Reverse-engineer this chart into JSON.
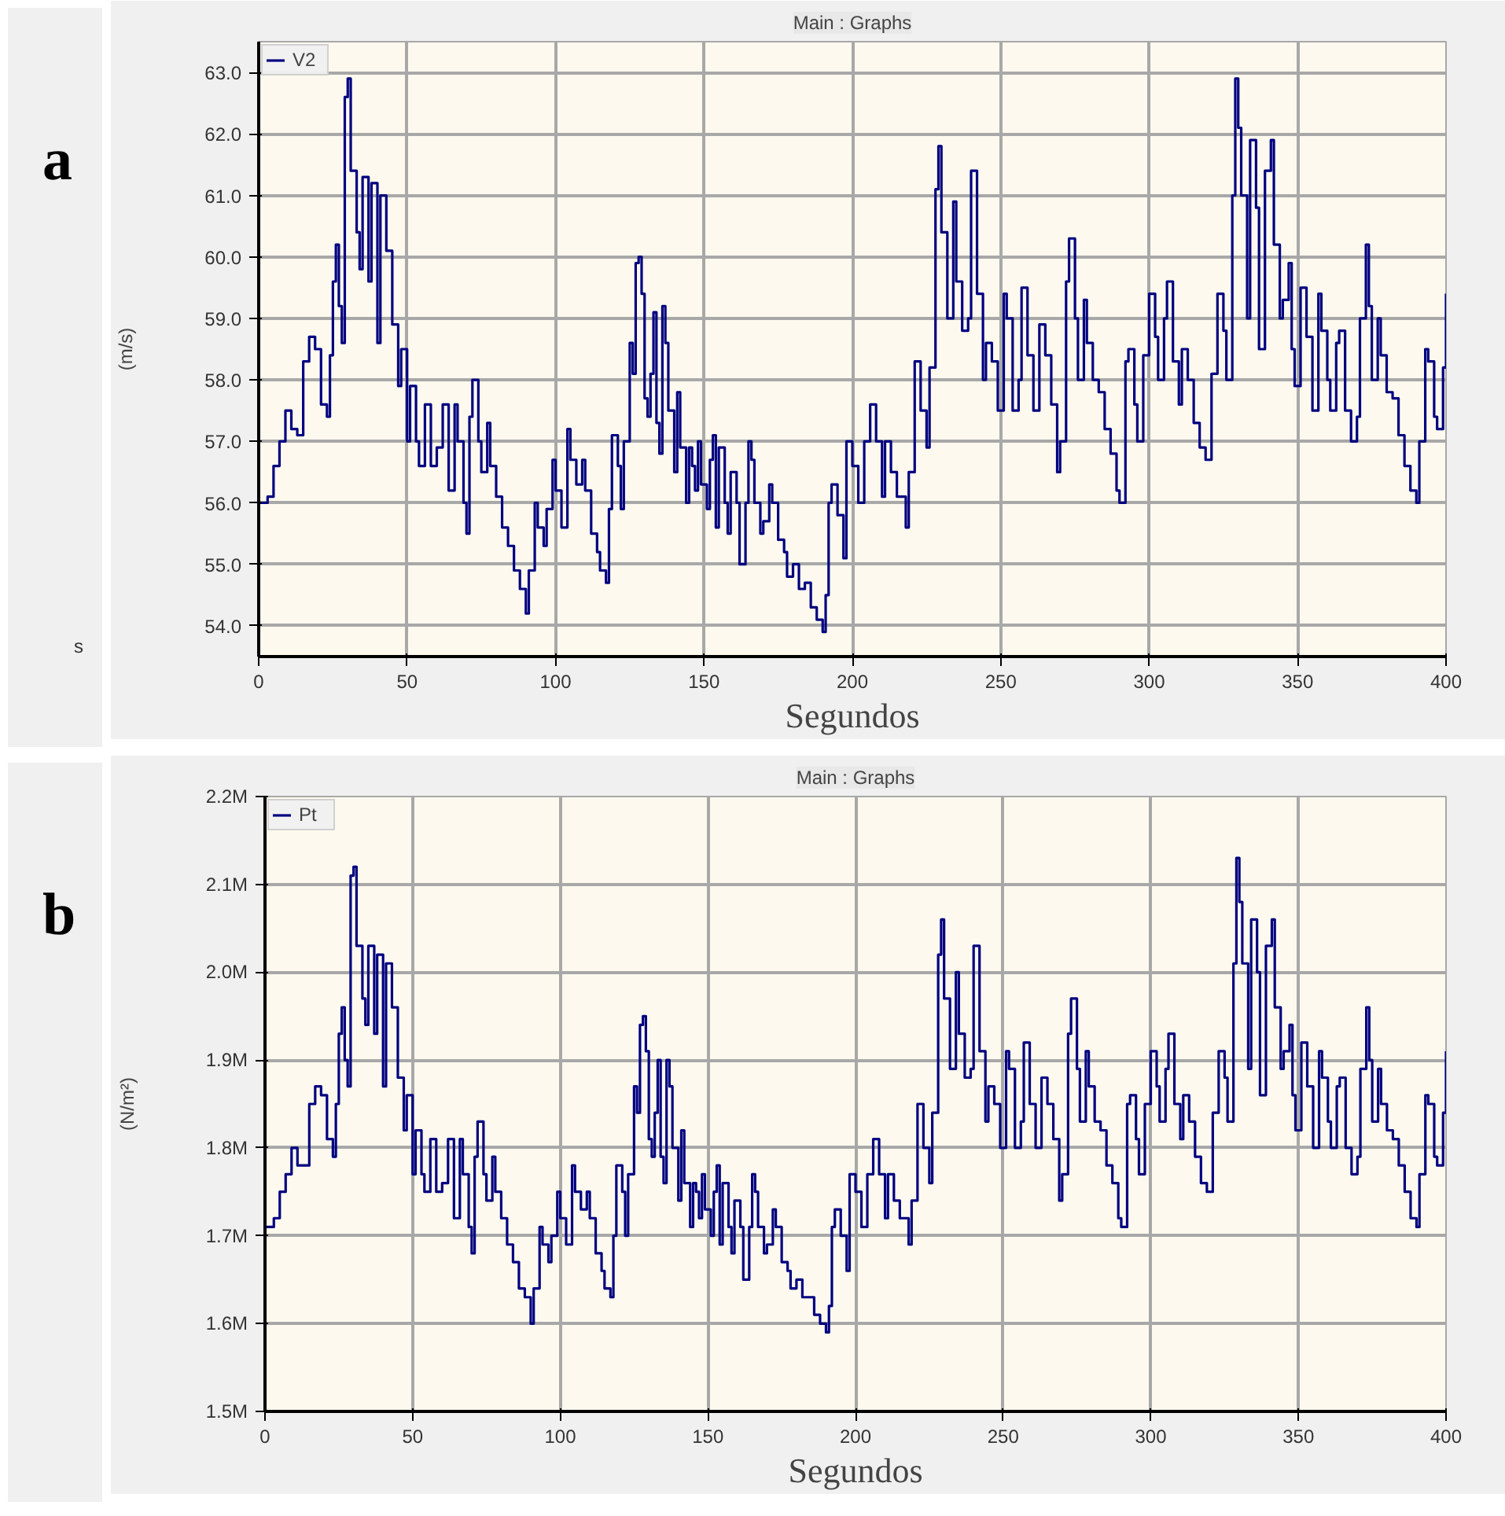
{
  "chart_data": [
    {
      "type": "step",
      "title": "Main : Graphs",
      "xlabel": "Segundos",
      "ylabel": "(m/s)",
      "annotations": [
        "a",
        "s"
      ],
      "grid": true,
      "legend": "top left",
      "xlim": [
        0,
        400
      ],
      "xticks": [
        0,
        50,
        100,
        150,
        200,
        250,
        300,
        350,
        400
      ],
      "ylim": [
        53.5,
        63.5
      ],
      "yticks": [
        {
          "value": 54,
          "label": "54.0"
        },
        {
          "value": 55,
          "label": "55.0"
        },
        {
          "value": 56,
          "label": "56.0"
        },
        {
          "value": 57,
          "label": "57.0"
        },
        {
          "value": 58,
          "label": "58.0"
        },
        {
          "value": 59,
          "label": "59.0"
        },
        {
          "value": 60,
          "label": "60.0"
        },
        {
          "value": 61,
          "label": "61.0"
        },
        {
          "value": 62,
          "label": "62.0"
        },
        {
          "value": 63,
          "label": "63.0"
        }
      ],
      "x": [
        0,
        3,
        5,
        7,
        9,
        11,
        13,
        15,
        17,
        19,
        21,
        23,
        24,
        25,
        26,
        27,
        28,
        29,
        30,
        31,
        33,
        34,
        35,
        37,
        38,
        40,
        41,
        43,
        45,
        47,
        48,
        50,
        51,
        53,
        54,
        56,
        58,
        60,
        62,
        64,
        66,
        67,
        69,
        70,
        71,
        72,
        74,
        75,
        77,
        78,
        80,
        82,
        84,
        86,
        88,
        90,
        91,
        93,
        94,
        96,
        97,
        99,
        100,
        102,
        104,
        105,
        107,
        109,
        110,
        112,
        114,
        115,
        117,
        118,
        119,
        121,
        122,
        123,
        125,
        126,
        127,
        128,
        129,
        130,
        131,
        132,
        133,
        134,
        135,
        136,
        137,
        138,
        140,
        141,
        142,
        144,
        145,
        146,
        147,
        148,
        149,
        151,
        152,
        153,
        154,
        155,
        157,
        158,
        159,
        161,
        162,
        164,
        165,
        166,
        167,
        169,
        170,
        172,
        173,
        175,
        177,
        178,
        180,
        182,
        184,
        186,
        188,
        190,
        191,
        192,
        193,
        195,
        197,
        198,
        200,
        202,
        204,
        206,
        208,
        210,
        211,
        213,
        215,
        218,
        219,
        221,
        223,
        225,
        226,
        228,
        229,
        230,
        232,
        234,
        235,
        237,
        239,
        240,
        242,
        244,
        245,
        247,
        249,
        251,
        252,
        254,
        256,
        257,
        259,
        261,
        263,
        265,
        267,
        269,
        270,
        272,
        273,
        275,
        276,
        278,
        279,
        281,
        283,
        285,
        287,
        289,
        290,
        292,
        293,
        295,
        296,
        298,
        300,
        302,
        303,
        305,
        306,
        308,
        310,
        311,
        313,
        315,
        317,
        319,
        321,
        323,
        325,
        326,
        328,
        329,
        330,
        331,
        333,
        334,
        336,
        337,
        339,
        341,
        342,
        344,
        345,
        347,
        348,
        349,
        351,
        353,
        355,
        357,
        358,
        360,
        361,
        363,
        364,
        366,
        368,
        370,
        371,
        373,
        374,
        375,
        377,
        378,
        380,
        382,
        384,
        386,
        388,
        390,
        391,
        393,
        394,
        396,
        397,
        399,
        400
      ],
      "series": [
        {
          "name": "V2",
          "color": "#000080",
          "values": [
            56.0,
            56.1,
            56.6,
            57.0,
            57.5,
            57.2,
            57.1,
            58.3,
            58.7,
            58.5,
            57.6,
            57.4,
            58.4,
            59.6,
            60.2,
            59.2,
            58.6,
            62.6,
            62.9,
            61.4,
            60.4,
            59.8,
            61.3,
            59.6,
            61.2,
            58.6,
            61.0,
            60.1,
            58.9,
            57.9,
            58.5,
            57.0,
            57.9,
            57.0,
            56.6,
            57.6,
            56.6,
            56.9,
            57.6,
            56.2,
            57.6,
            57.0,
            56.0,
            55.5,
            57.4,
            58.0,
            57.0,
            56.5,
            57.3,
            56.6,
            56.1,
            55.6,
            55.3,
            54.9,
            54.6,
            54.2,
            54.9,
            56.0,
            55.6,
            55.3,
            55.9,
            56.7,
            56.2,
            55.6,
            57.2,
            56.7,
            56.3,
            56.7,
            56.2,
            55.5,
            55.2,
            54.9,
            54.7,
            55.9,
            57.1,
            56.6,
            55.9,
            57.0,
            58.6,
            58.1,
            59.9,
            60.0,
            59.4,
            57.7,
            57.4,
            58.1,
            59.1,
            57.3,
            56.8,
            59.2,
            58.6,
            57.5,
            56.5,
            57.8,
            56.9,
            56.0,
            56.9,
            56.6,
            56.2,
            57.0,
            56.3,
            55.9,
            56.7,
            57.1,
            55.6,
            56.9,
            56.0,
            55.5,
            56.5,
            56.0,
            55.0,
            56.0,
            57.0,
            56.7,
            56.0,
            55.5,
            55.7,
            56.3,
            56.0,
            55.4,
            55.2,
            54.8,
            55.0,
            54.6,
            54.7,
            54.3,
            54.1,
            53.9,
            54.5,
            56.0,
            56.3,
            55.8,
            55.1,
            57.0,
            56.6,
            56.0,
            57.0,
            57.6,
            57.0,
            56.1,
            57.0,
            56.5,
            56.1,
            55.6,
            56.5,
            58.3,
            57.5,
            56.9,
            58.2,
            61.1,
            61.8,
            60.4,
            59.0,
            60.9,
            59.6,
            58.8,
            59.0,
            61.4,
            59.4,
            58.0,
            58.6,
            58.3,
            57.5,
            59.4,
            59.0,
            57.5,
            58.0,
            59.5,
            58.4,
            57.5,
            58.9,
            58.4,
            57.6,
            56.5,
            57.0,
            59.6,
            60.3,
            59.0,
            58.0,
            59.3,
            58.6,
            58.0,
            57.8,
            57.2,
            56.8,
            56.2,
            56.0,
            58.3,
            58.5,
            57.6,
            57.0,
            58.4,
            59.4,
            58.7,
            58.0,
            59.0,
            59.6,
            58.3,
            57.6,
            58.5,
            58.0,
            57.3,
            56.9,
            56.7,
            58.1,
            59.4,
            58.8,
            58.0,
            61.0,
            62.9,
            62.1,
            61.0,
            59.0,
            61.9,
            60.8,
            58.5,
            61.4,
            61.9,
            60.2,
            59.0,
            59.3,
            59.9,
            58.5,
            57.9,
            59.5,
            58.7,
            57.5,
            59.4,
            58.8,
            58.0,
            57.5,
            58.6,
            58.8,
            57.5,
            57.0,
            57.4,
            59.0,
            60.2,
            59.2,
            58.0,
            59.0,
            58.4,
            57.8,
            57.7,
            57.1,
            56.6,
            56.2,
            56.0,
            57.0,
            58.5,
            58.3,
            57.4,
            57.2,
            58.2,
            59.4
          ]
        }
      ]
    },
    {
      "type": "step",
      "title": "Main : Graphs",
      "xlabel": "Segundos",
      "ylabel": "(N/m²)",
      "annotations": [
        "b"
      ],
      "grid": true,
      "legend": "top left",
      "xlim": [
        0,
        400
      ],
      "xticks": [
        0,
        50,
        100,
        150,
        200,
        250,
        300,
        350,
        400
      ],
      "ylim": [
        1500000,
        2200000
      ],
      "yticks": [
        {
          "value": 1500000,
          "label": "1.5M"
        },
        {
          "value": 1600000,
          "label": "1.6M"
        },
        {
          "value": 1700000,
          "label": "1.7M"
        },
        {
          "value": 1800000,
          "label": "1.8M"
        },
        {
          "value": 1900000,
          "label": "1.9M"
        },
        {
          "value": 2000000,
          "label": "2.0M"
        },
        {
          "value": 2100000,
          "label": "2.1M"
        },
        {
          "value": 2200000,
          "label": "2.2M"
        }
      ],
      "x": [
        0,
        3,
        5,
        7,
        9,
        11,
        13,
        15,
        17,
        19,
        21,
        23,
        24,
        25,
        26,
        27,
        28,
        29,
        30,
        31,
        33,
        34,
        35,
        37,
        38,
        40,
        41,
        43,
        45,
        47,
        48,
        50,
        51,
        53,
        54,
        56,
        58,
        60,
        62,
        64,
        66,
        67,
        69,
        70,
        71,
        72,
        74,
        75,
        77,
        78,
        80,
        82,
        84,
        86,
        88,
        90,
        91,
        93,
        94,
        96,
        97,
        99,
        100,
        102,
        104,
        105,
        107,
        109,
        110,
        112,
        114,
        115,
        117,
        118,
        119,
        121,
        122,
        123,
        125,
        126,
        127,
        128,
        129,
        130,
        131,
        132,
        133,
        134,
        135,
        136,
        137,
        138,
        140,
        141,
        142,
        144,
        145,
        146,
        147,
        148,
        149,
        151,
        152,
        153,
        154,
        155,
        157,
        158,
        159,
        161,
        162,
        164,
        165,
        166,
        167,
        169,
        170,
        172,
        173,
        175,
        177,
        178,
        180,
        182,
        184,
        186,
        188,
        190,
        191,
        192,
        193,
        195,
        197,
        198,
        200,
        202,
        204,
        206,
        208,
        210,
        211,
        213,
        215,
        218,
        219,
        221,
        223,
        225,
        226,
        228,
        229,
        230,
        232,
        234,
        235,
        237,
        239,
        240,
        242,
        244,
        245,
        247,
        249,
        251,
        252,
        254,
        256,
        257,
        259,
        261,
        263,
        265,
        267,
        269,
        270,
        272,
        273,
        275,
        276,
        278,
        279,
        281,
        283,
        285,
        287,
        289,
        290,
        292,
        293,
        295,
        296,
        298,
        300,
        302,
        303,
        305,
        306,
        308,
        310,
        311,
        313,
        315,
        317,
        319,
        321,
        323,
        325,
        326,
        328,
        329,
        330,
        331,
        333,
        334,
        336,
        337,
        339,
        341,
        342,
        344,
        345,
        347,
        348,
        349,
        351,
        353,
        355,
        357,
        358,
        360,
        361,
        363,
        364,
        366,
        368,
        370,
        371,
        373,
        374,
        375,
        377,
        378,
        380,
        382,
        384,
        386,
        388,
        390,
        391,
        393,
        394,
        396,
        397,
        399,
        400
      ],
      "series": [
        {
          "name": "Pt",
          "color": "#000080",
          "values": [
            1710000,
            1720000,
            1750000,
            1770000,
            1800000,
            1780000,
            1780000,
            1850000,
            1870000,
            1860000,
            1810000,
            1790000,
            1850000,
            1930000,
            1960000,
            1900000,
            1870000,
            2110000,
            2120000,
            2030000,
            1970000,
            1940000,
            2030000,
            1930000,
            2020000,
            1870000,
            2010000,
            1960000,
            1880000,
            1820000,
            1860000,
            1770000,
            1820000,
            1770000,
            1750000,
            1810000,
            1750000,
            1760000,
            1810000,
            1720000,
            1810000,
            1770000,
            1710000,
            1680000,
            1790000,
            1830000,
            1770000,
            1740000,
            1790000,
            1750000,
            1720000,
            1690000,
            1670000,
            1640000,
            1630000,
            1600000,
            1640000,
            1710000,
            1690000,
            1670000,
            1700000,
            1750000,
            1720000,
            1690000,
            1780000,
            1750000,
            1730000,
            1750000,
            1720000,
            1680000,
            1660000,
            1640000,
            1630000,
            1700000,
            1780000,
            1750000,
            1700000,
            1770000,
            1870000,
            1840000,
            1940000,
            1950000,
            1910000,
            1810000,
            1790000,
            1840000,
            1900000,
            1790000,
            1760000,
            1900000,
            1870000,
            1800000,
            1740000,
            1820000,
            1760000,
            1710000,
            1760000,
            1750000,
            1720000,
            1770000,
            1730000,
            1700000,
            1750000,
            1780000,
            1690000,
            1760000,
            1710000,
            1680000,
            1740000,
            1710000,
            1650000,
            1710000,
            1770000,
            1750000,
            1710000,
            1680000,
            1690000,
            1730000,
            1710000,
            1670000,
            1660000,
            1640000,
            1650000,
            1630000,
            1630000,
            1610000,
            1600000,
            1590000,
            1620000,
            1710000,
            1730000,
            1700000,
            1660000,
            1770000,
            1750000,
            1710000,
            1770000,
            1810000,
            1770000,
            1720000,
            1770000,
            1740000,
            1720000,
            1690000,
            1740000,
            1850000,
            1800000,
            1760000,
            1840000,
            2020000,
            2060000,
            1970000,
            1890000,
            2000000,
            1930000,
            1880000,
            1890000,
            2030000,
            1910000,
            1830000,
            1870000,
            1850000,
            1800000,
            1910000,
            1890000,
            1800000,
            1830000,
            1920000,
            1850000,
            1800000,
            1880000,
            1850000,
            1810000,
            1740000,
            1770000,
            1930000,
            1970000,
            1890000,
            1830000,
            1910000,
            1870000,
            1830000,
            1820000,
            1780000,
            1760000,
            1720000,
            1710000,
            1850000,
            1860000,
            1810000,
            1770000,
            1850000,
            1910000,
            1870000,
            1830000,
            1890000,
            1930000,
            1850000,
            1810000,
            1860000,
            1830000,
            1790000,
            1760000,
            1750000,
            1840000,
            1910000,
            1880000,
            1830000,
            2010000,
            2130000,
            2080000,
            2010000,
            1890000,
            2060000,
            2000000,
            1860000,
            2030000,
            2060000,
            1960000,
            1890000,
            1910000,
            1940000,
            1860000,
            1820000,
            1920000,
            1870000,
            1800000,
            1910000,
            1880000,
            1830000,
            1800000,
            1870000,
            1880000,
            1800000,
            1770000,
            1790000,
            1890000,
            1960000,
            1900000,
            1830000,
            1890000,
            1850000,
            1820000,
            1810000,
            1780000,
            1750000,
            1720000,
            1710000,
            1770000,
            1860000,
            1850000,
            1790000,
            1780000,
            1840000,
            1910000
          ]
        }
      ]
    }
  ]
}
